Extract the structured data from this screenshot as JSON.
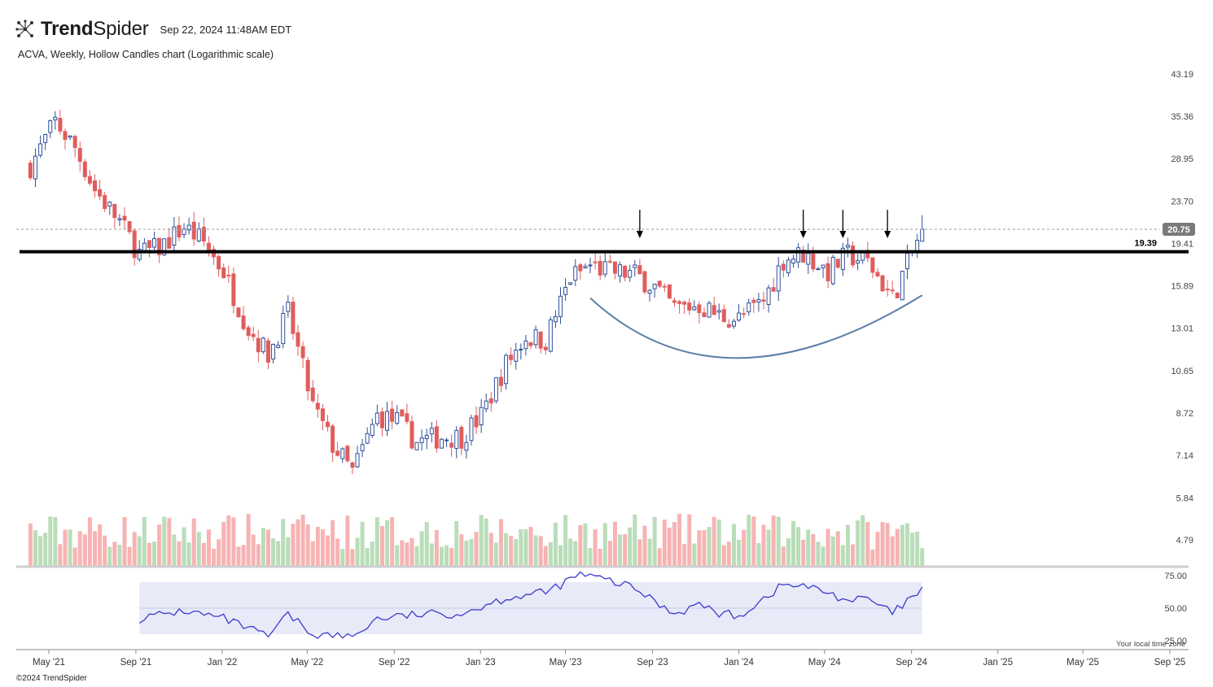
{
  "header": {
    "brand_bold": "Trend",
    "brand_light": "Spider",
    "timestamp": "Sep 22, 2024 11:48AM EDT",
    "description": "ACVA, Weekly, Hollow Candles chart (Logarithmic scale)",
    "logo_icon": "trendspider-logo-icon"
  },
  "footer": {
    "copyright": "©2024 TrendSpider"
  },
  "colors": {
    "up": "#2f4f9a",
    "down": "#e05d5d",
    "vol_up": "#b9ddb9",
    "vol_down": "#f7b3b3",
    "rsi": "#3a3acc",
    "rsi_band": "#e8eaf8",
    "curve": "#5b7fa8",
    "level": "#000000",
    "price_line": "#9a9a9a"
  },
  "chart_data": {
    "type": "candlestick",
    "scale": "log",
    "timeframe": "Weekly",
    "symbol": "ACVA",
    "price_axis_ticks": [
      43.19,
      35.36,
      28.95,
      23.7,
      19.41,
      15.89,
      13.01,
      10.65,
      8.72,
      7.14,
      5.84,
      4.79
    ],
    "price_axis_tick_labels": [
      "43.19",
      "35.36",
      "28.95",
      "23.70",
      "19.41",
      "15.89",
      "13.01",
      "10.65",
      "8.72",
      "7.14",
      "5.84",
      "4.79"
    ],
    "x_axis_labels": [
      "May '21",
      "Sep '21",
      "Jan '22",
      "May '22",
      "Sep '22",
      "Jan '23",
      "May '23",
      "Sep '23",
      "Jan '24",
      "May '24",
      "Sep '24",
      "Jan '25",
      "May '25",
      "Sep '25"
    ],
    "x_axis_dates": [
      "2021-05",
      "2021-09",
      "2022-01",
      "2022-05",
      "2022-09",
      "2023-01",
      "2023-05",
      "2023-09",
      "2024-01",
      "2024-05",
      "2024-09",
      "2025-01",
      "2025-05",
      "2025-09"
    ],
    "last_price": 20.75,
    "last_price_label": "20.75",
    "resistance_level": 19.39,
    "resistance_label": "19.39",
    "resistance_arrow_dates": [
      "2023-08-14",
      "2024-04-01",
      "2024-05-27",
      "2024-07-29"
    ],
    "cup_curve": {
      "start": {
        "date": "2023-06-05",
        "price": 15.0
      },
      "bottom": {
        "date": "2024-01-01",
        "price": 11.3
      },
      "end": {
        "date": "2024-09-16",
        "price": 15.2
      }
    },
    "price_path": [
      {
        "date": "2021-04-05",
        "close": 28.0
      },
      {
        "date": "2021-05-10",
        "close": 34.5
      },
      {
        "date": "2021-06-07",
        "close": 30.5
      },
      {
        "date": "2021-07-05",
        "close": 25.0
      },
      {
        "date": "2021-08-09",
        "close": 21.5
      },
      {
        "date": "2021-09-06",
        "close": 18.5
      },
      {
        "date": "2021-10-04",
        "close": 19.0
      },
      {
        "date": "2021-11-08",
        "close": 21.0
      },
      {
        "date": "2021-12-06",
        "close": 19.5
      },
      {
        "date": "2022-01-03",
        "close": 17.0
      },
      {
        "date": "2022-02-07",
        "close": 13.0
      },
      {
        "date": "2022-03-07",
        "close": 11.5
      },
      {
        "date": "2022-04-04",
        "close": 14.0
      },
      {
        "date": "2022-05-09",
        "close": 9.0
      },
      {
        "date": "2022-06-06",
        "close": 7.5
      },
      {
        "date": "2022-07-04",
        "close": 6.6
      },
      {
        "date": "2022-08-08",
        "close": 8.6
      },
      {
        "date": "2022-09-05",
        "close": 8.4
      },
      {
        "date": "2022-10-03",
        "close": 7.6
      },
      {
        "date": "2022-11-07",
        "close": 7.8
      },
      {
        "date": "2022-12-05",
        "close": 7.8
      },
      {
        "date": "2023-01-02",
        "close": 8.6
      },
      {
        "date": "2023-02-06",
        "close": 11.0
      },
      {
        "date": "2023-03-06",
        "close": 12.5
      },
      {
        "date": "2023-04-03",
        "close": 12.3
      },
      {
        "date": "2023-05-08",
        "close": 16.5
      },
      {
        "date": "2023-06-05",
        "close": 17.5
      },
      {
        "date": "2023-07-03",
        "close": 17.0
      },
      {
        "date": "2023-08-07",
        "close": 16.8
      },
      {
        "date": "2023-09-04",
        "close": 15.8
      },
      {
        "date": "2023-10-02",
        "close": 14.3
      },
      {
        "date": "2023-11-06",
        "close": 14.5
      },
      {
        "date": "2023-12-04",
        "close": 13.8
      },
      {
        "date": "2024-01-01",
        "close": 13.6
      },
      {
        "date": "2024-02-05",
        "close": 14.8
      },
      {
        "date": "2024-03-04",
        "close": 18.0
      },
      {
        "date": "2024-04-01",
        "close": 18.5
      },
      {
        "date": "2024-05-06",
        "close": 17.0
      },
      {
        "date": "2024-06-03",
        "close": 18.4
      },
      {
        "date": "2024-07-01",
        "close": 17.8
      },
      {
        "date": "2024-08-05",
        "close": 15.0
      },
      {
        "date": "2024-09-02",
        "close": 18.6
      },
      {
        "date": "2024-09-16",
        "close": 20.75
      }
    ],
    "rsi": {
      "levels": [
        25.0,
        50.0,
        75.0
      ],
      "level_labels": [
        "25.00",
        "50.00",
        "75.00"
      ],
      "band": [
        30,
        70
      ],
      "values": [
        {
          "date": "2021-09-06",
          "value": 42
        },
        {
          "date": "2021-11-08",
          "value": 48
        },
        {
          "date": "2022-01-03",
          "value": 42
        },
        {
          "date": "2022-03-07",
          "value": 28
        },
        {
          "date": "2022-04-04",
          "value": 45
        },
        {
          "date": "2022-05-09",
          "value": 30
        },
        {
          "date": "2022-07-04",
          "value": 28
        },
        {
          "date": "2022-08-08",
          "value": 42
        },
        {
          "date": "2022-10-03",
          "value": 45
        },
        {
          "date": "2022-12-05",
          "value": 46
        },
        {
          "date": "2023-02-06",
          "value": 58
        },
        {
          "date": "2023-04-03",
          "value": 62
        },
        {
          "date": "2023-05-22",
          "value": 76
        },
        {
          "date": "2023-07-03",
          "value": 71
        },
        {
          "date": "2023-08-07",
          "value": 65
        },
        {
          "date": "2023-10-02",
          "value": 46
        },
        {
          "date": "2023-11-06",
          "value": 53
        },
        {
          "date": "2023-12-04",
          "value": 46
        },
        {
          "date": "2024-01-01",
          "value": 44
        },
        {
          "date": "2024-03-04",
          "value": 68
        },
        {
          "date": "2024-04-01",
          "value": 67
        },
        {
          "date": "2024-05-06",
          "value": 62
        },
        {
          "date": "2024-06-03",
          "value": 56
        },
        {
          "date": "2024-07-01",
          "value": 57
        },
        {
          "date": "2024-08-05",
          "value": 46
        },
        {
          "date": "2024-09-16",
          "value": 64
        }
      ]
    },
    "notes_visible": "Your local time zone"
  }
}
